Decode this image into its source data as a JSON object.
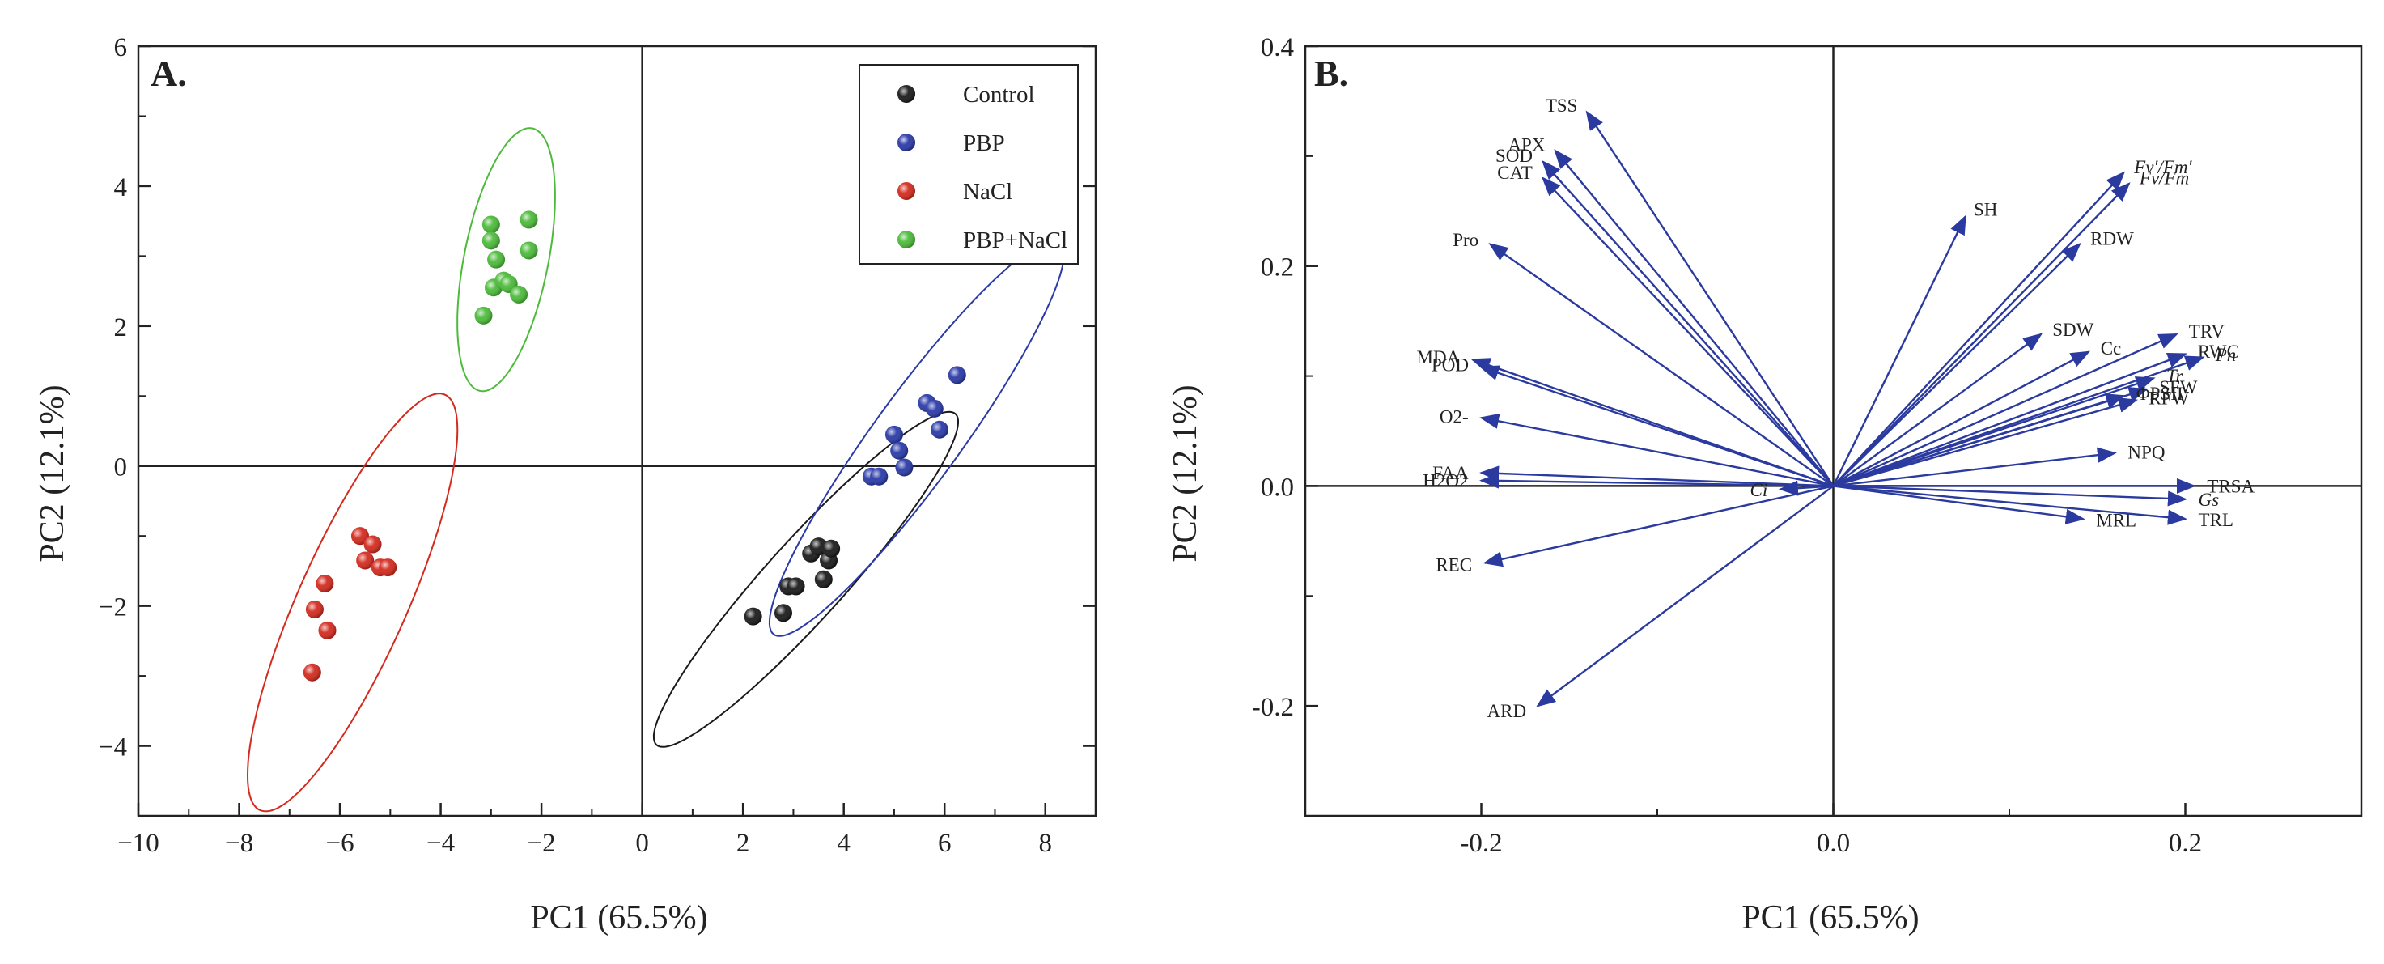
{
  "figure": {
    "panel_a_label": "A.",
    "panel_b_label": "B."
  },
  "chart_data": [
    {
      "type": "scatter",
      "panel": "A.",
      "xlabel": "PC1 (65.5%)",
      "ylabel": "PC2 (12.1%)",
      "xlim": [
        -10,
        9
      ],
      "ylim": [
        -5,
        6
      ],
      "xticks": [
        -10,
        -8,
        -6,
        -4,
        -2,
        0,
        2,
        4,
        6,
        8
      ],
      "yticks": [
        -4,
        -2,
        0,
        2,
        4,
        6
      ],
      "legend_position": "top-right",
      "series": [
        {
          "name": "Control",
          "color": "#1a1a1a",
          "points": [
            [
              2.2,
              -2.15
            ],
            [
              2.8,
              -2.1
            ],
            [
              2.9,
              -1.72
            ],
            [
              3.05,
              -1.72
            ],
            [
              3.35,
              -1.25
            ],
            [
              3.5,
              -1.15
            ],
            [
              3.7,
              -1.35
            ],
            [
              3.6,
              -1.62
            ],
            [
              3.75,
              -1.18
            ]
          ],
          "ellipse": {
            "center": [
              3.25,
              -1.62
            ],
            "rx": 3.8,
            "ry": 0.65,
            "angle_deg": 38
          }
        },
        {
          "name": "PBP",
          "color": "#2a3aa8",
          "points": [
            [
              4.55,
              -0.15
            ],
            [
              4.7,
              -0.15
            ],
            [
              5.0,
              0.45
            ],
            [
              5.1,
              0.22
            ],
            [
              5.2,
              -0.02
            ],
            [
              5.65,
              0.9
            ],
            [
              5.8,
              0.82
            ],
            [
              5.9,
              0.52
            ],
            [
              6.25,
              1.3
            ]
          ],
          "ellipse": {
            "center": [
              5.45,
              0.4
            ],
            "rx": 4.0,
            "ry": 0.75,
            "angle_deg": 44
          }
        },
        {
          "name": "NaCl",
          "color": "#d42a1e",
          "points": [
            [
              -6.55,
              -2.95
            ],
            [
              -6.5,
              -2.05
            ],
            [
              -6.3,
              -1.68
            ],
            [
              -6.25,
              -2.35
            ],
            [
              -5.6,
              -1.0
            ],
            [
              -5.5,
              -1.35
            ],
            [
              -5.35,
              -1.12
            ],
            [
              -5.2,
              -1.45
            ],
            [
              -5.05,
              -1.45
            ]
          ],
          "ellipse": {
            "center": [
              -5.75,
              -1.95
            ],
            "rx": 3.5,
            "ry": 1.0,
            "angle_deg": 57
          }
        },
        {
          "name": "PBP+NaCl",
          "color": "#4cbb3a",
          "points": [
            [
              -3.15,
              2.15
            ],
            [
              -3.0,
              3.45
            ],
            [
              -3.0,
              3.22
            ],
            [
              -2.9,
              2.95
            ],
            [
              -2.95,
              2.55
            ],
            [
              -2.75,
              2.65
            ],
            [
              -2.65,
              2.6
            ],
            [
              -2.45,
              2.45
            ],
            [
              -2.25,
              3.52
            ],
            [
              -2.25,
              3.08
            ]
          ],
          "ellipse": {
            "center": [
              -2.7,
              2.95
            ],
            "rx": 1.95,
            "ry": 0.82,
            "angle_deg": 73
          }
        }
      ]
    },
    {
      "type": "biplot",
      "panel": "B.",
      "xlabel": "PC1 (65.5%)",
      "ylabel": "PC2 (12.1%)",
      "xlim": [
        -0.3,
        0.3
      ],
      "ylim": [
        -0.3,
        0.4
      ],
      "xticks": [
        -0.2,
        0.0,
        0.2
      ],
      "xtick_labels": [
        "-0.2",
        "0.0",
        "0.2"
      ],
      "yticks": [
        -0.2,
        0.0,
        0.2,
        0.4
      ],
      "ytick_labels": [
        "-0.2",
        "0.0",
        "0.2",
        "0.4"
      ],
      "arrow_color": "#2b3a9e",
      "loadings": [
        {
          "name": "TSS",
          "x": -0.14,
          "y": 0.34
        },
        {
          "name": "APX",
          "x": -0.158,
          "y": 0.305
        },
        {
          "name": "SOD",
          "x": -0.165,
          "y": 0.295
        },
        {
          "name": "CAT",
          "x": -0.165,
          "y": 0.28
        },
        {
          "name": "Pro",
          "x": -0.195,
          "y": 0.22
        },
        {
          "name": "MDA",
          "x": -0.205,
          "y": 0.115
        },
        {
          "name": "POD",
          "x": -0.2,
          "y": 0.108
        },
        {
          "name": "O2-",
          "x": -0.2,
          "y": 0.062
        },
        {
          "name": "FAA",
          "x": -0.2,
          "y": 0.012
        },
        {
          "name": "H2O2",
          "x": -0.2,
          "y": 0.005
        },
        {
          "name": "Ci",
          "x": -0.03,
          "y": -0.003
        },
        {
          "name": "REC",
          "x": -0.198,
          "y": -0.07
        },
        {
          "name": "ARD",
          "x": -0.168,
          "y": -0.2
        },
        {
          "name": "SH",
          "x": 0.075,
          "y": 0.245
        },
        {
          "name": "Fv′/Fm′",
          "x": 0.165,
          "y": 0.285
        },
        {
          "name": "Fv/Fm",
          "x": 0.168,
          "y": 0.275
        },
        {
          "name": "RDW",
          "x": 0.14,
          "y": 0.22
        },
        {
          "name": "SDW",
          "x": 0.118,
          "y": 0.138
        },
        {
          "name": "Cc",
          "x": 0.145,
          "y": 0.122
        },
        {
          "name": "TRV",
          "x": 0.195,
          "y": 0.138
        },
        {
          "name": "RWC",
          "x": 0.2,
          "y": 0.12
        },
        {
          "name": "Pn",
          "x": 0.21,
          "y": 0.117
        },
        {
          "name": "Tr",
          "x": 0.182,
          "y": 0.098
        },
        {
          "name": "SFW",
          "x": 0.178,
          "y": 0.088
        },
        {
          "name": "RFW",
          "x": 0.172,
          "y": 0.078
        },
        {
          "name": "ΦPSII",
          "x": 0.165,
          "y": 0.082
        },
        {
          "name": "NPQ",
          "x": 0.16,
          "y": 0.03
        },
        {
          "name": "TRSA",
          "x": 0.205,
          "y": 0.0
        },
        {
          "name": "Gs",
          "x": 0.2,
          "y": -0.012
        },
        {
          "name": "MRL",
          "x": 0.142,
          "y": -0.03
        },
        {
          "name": "TRL",
          "x": 0.2,
          "y": -0.03
        }
      ]
    }
  ]
}
